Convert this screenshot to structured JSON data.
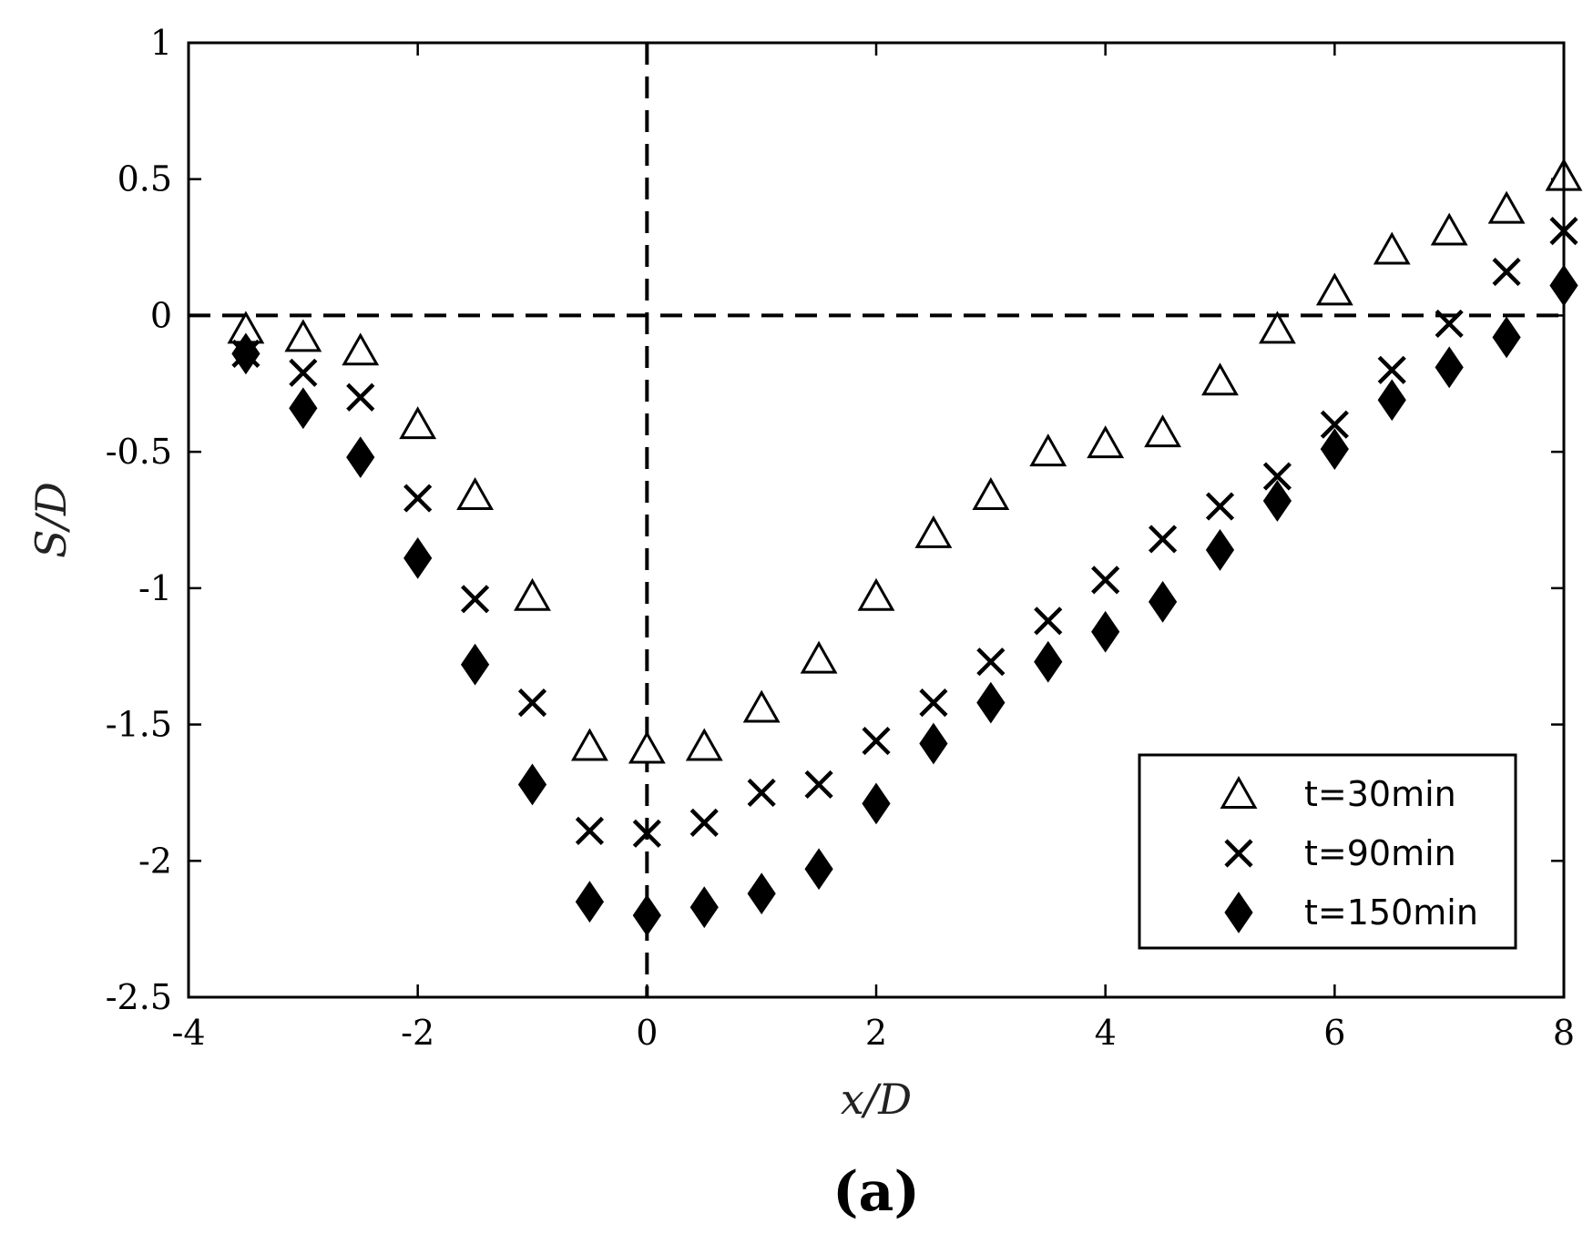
{
  "chart_data": {
    "type": "scatter",
    "xlabel": "x/D",
    "ylabel": "S/D",
    "panel_label": "(a)",
    "xlim": [
      -4,
      8
    ],
    "ylim": [
      -2.5,
      1
    ],
    "xticks": [
      -4,
      -2,
      0,
      2,
      4,
      6,
      8
    ],
    "xtick_labels": [
      "-4",
      "-2",
      "0",
      "2",
      "4",
      "6",
      "8"
    ],
    "yticks": [
      1,
      0.5,
      0,
      -0.5,
      -1,
      -1.5,
      -2,
      -2.5
    ],
    "ytick_labels": [
      "1",
      "0.5",
      "0",
      "-0.5",
      "-1",
      "-1.5",
      "-2",
      "-2.5"
    ],
    "grid": false,
    "reference_lines": [
      {
        "orientation": "vertical",
        "value": 0,
        "style": "dashed"
      },
      {
        "orientation": "horizontal",
        "value": 0,
        "style": "dashed"
      }
    ],
    "legend_position": "bottom-right",
    "series": [
      {
        "name": "t=30min",
        "marker": "triangle-open",
        "points": [
          [
            -3.5,
            -0.05
          ],
          [
            -3.0,
            -0.08
          ],
          [
            -2.5,
            -0.13
          ],
          [
            -2.0,
            -0.4
          ],
          [
            -1.5,
            -0.66
          ],
          [
            -1.0,
            -1.03
          ],
          [
            -0.5,
            -1.58
          ],
          [
            0.0,
            -1.59
          ],
          [
            0.5,
            -1.58
          ],
          [
            1.0,
            -1.44
          ],
          [
            1.5,
            -1.26
          ],
          [
            2.0,
            -1.03
          ],
          [
            2.5,
            -0.8
          ],
          [
            3.0,
            -0.66
          ],
          [
            3.5,
            -0.5
          ],
          [
            4.0,
            -0.47
          ],
          [
            4.5,
            -0.43
          ],
          [
            5.0,
            -0.24
          ],
          [
            5.5,
            -0.05
          ],
          [
            6.0,
            0.09
          ],
          [
            6.5,
            0.24
          ],
          [
            7.0,
            0.31
          ],
          [
            7.5,
            0.39
          ],
          [
            8.0,
            0.51
          ]
        ]
      },
      {
        "name": "t=90min",
        "marker": "x",
        "points": [
          [
            -3.5,
            -0.14
          ],
          [
            -3.0,
            -0.21
          ],
          [
            -2.5,
            -0.3
          ],
          [
            -2.0,
            -0.67
          ],
          [
            -1.5,
            -1.04
          ],
          [
            -1.0,
            -1.42
          ],
          [
            -0.5,
            -1.89
          ],
          [
            0.0,
            -1.9
          ],
          [
            0.5,
            -1.86
          ],
          [
            1.0,
            -1.75
          ],
          [
            1.5,
            -1.72
          ],
          [
            2.0,
            -1.56
          ],
          [
            2.5,
            -1.42
          ],
          [
            3.0,
            -1.27
          ],
          [
            3.5,
            -1.12
          ],
          [
            4.0,
            -0.97
          ],
          [
            4.5,
            -0.82
          ],
          [
            5.0,
            -0.7
          ],
          [
            5.5,
            -0.59
          ],
          [
            6.0,
            -0.4
          ],
          [
            6.5,
            -0.2
          ],
          [
            7.0,
            -0.03
          ],
          [
            7.5,
            0.16
          ],
          [
            8.0,
            0.31
          ]
        ]
      },
      {
        "name": "t=150min",
        "marker": "diamond-filled",
        "points": [
          [
            -3.5,
            -0.14
          ],
          [
            -3.0,
            -0.34
          ],
          [
            -2.5,
            -0.52
          ],
          [
            -2.0,
            -0.89
          ],
          [
            -1.5,
            -1.28
          ],
          [
            -1.0,
            -1.72
          ],
          [
            -0.5,
            -2.15
          ],
          [
            0.0,
            -2.2
          ],
          [
            0.5,
            -2.17
          ],
          [
            1.0,
            -2.12
          ],
          [
            1.5,
            -2.03
          ],
          [
            2.0,
            -1.79
          ],
          [
            2.5,
            -1.57
          ],
          [
            3.0,
            -1.42
          ],
          [
            3.5,
            -1.27
          ],
          [
            4.0,
            -1.16
          ],
          [
            4.5,
            -1.05
          ],
          [
            5.0,
            -0.86
          ],
          [
            5.5,
            -0.68
          ],
          [
            6.0,
            -0.49
          ],
          [
            6.5,
            -0.31
          ],
          [
            7.0,
            -0.19
          ],
          [
            7.5,
            -0.08
          ],
          [
            8.0,
            0.11
          ]
        ]
      }
    ]
  }
}
